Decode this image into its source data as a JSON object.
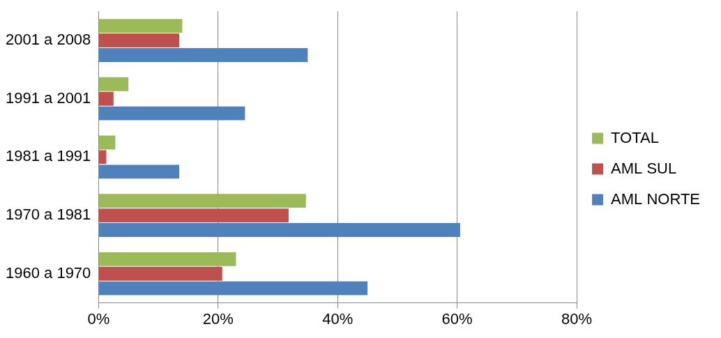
{
  "chart_data": {
    "type": "bar",
    "orientation": "horizontal",
    "categories": [
      "2001 a 2008",
      "1991 a 2001",
      "1981 a 1991",
      "1970 a 1981",
      "1960 a 1970"
    ],
    "series": [
      {
        "name": "TOTAL",
        "color": "#9bbb59",
        "values": [
          14,
          5,
          2.8,
          34.7,
          23
        ]
      },
      {
        "name": "AML SUL",
        "color": "#c0504d",
        "values": [
          13.5,
          2.5,
          1.3,
          31.8,
          20.7
        ]
      },
      {
        "name": "AML NORTE",
        "color": "#4f81bd",
        "values": [
          35,
          24.5,
          13.5,
          60.5,
          45
        ]
      }
    ],
    "xlim": [
      0,
      80
    ],
    "xticks": [
      {
        "value": 0,
        "label": "0%"
      },
      {
        "value": 20,
        "label": "20%"
      },
      {
        "value": 40,
        "label": "40%"
      },
      {
        "value": 60,
        "label": "60%"
      },
      {
        "value": 80,
        "label": "80%"
      }
    ],
    "grid": true,
    "legend": "right"
  }
}
